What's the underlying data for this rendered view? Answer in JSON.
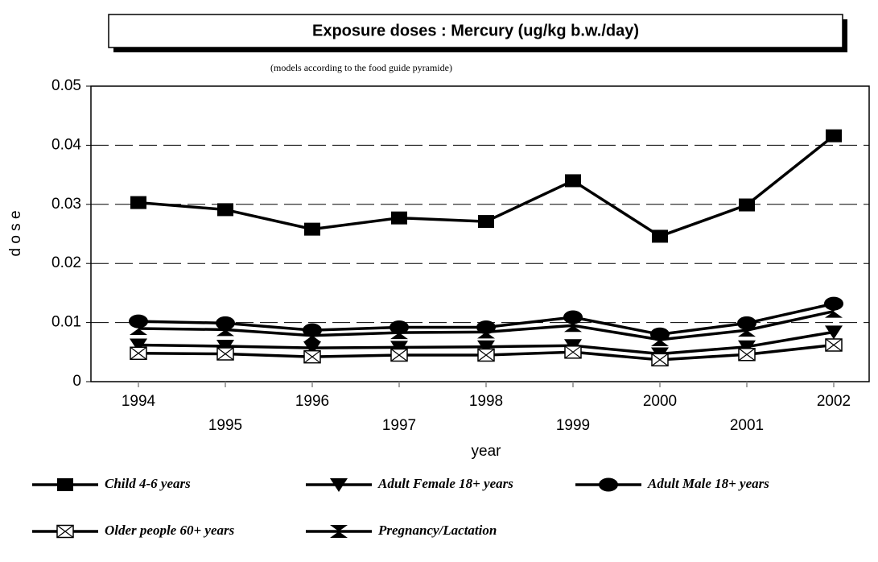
{
  "chart_data": {
    "type": "line",
    "title": "Exposure doses : Mercury (ug/kg b.w./day)",
    "subtitle": "(models according to the food guide pyramide)",
    "x_label": "year",
    "y_label": "d o s e",
    "categories": [
      "1994",
      "1995",
      "1996",
      "1997",
      "1998",
      "1999",
      "2000",
      "2001",
      "2002"
    ],
    "ylim": [
      0,
      0.05
    ],
    "yticks": [
      0,
      0.01,
      0.02,
      0.03,
      0.04,
      0.05
    ],
    "grid": true,
    "legend": "bottom",
    "series": [
      {
        "name": "Child 4-6 years",
        "color": "#000000",
        "marker": "square",
        "values": [
          0.0303,
          0.0291,
          0.0258,
          0.0277,
          0.0271,
          0.034,
          0.0246,
          0.0299,
          0.0416
        ]
      },
      {
        "name": "Adult Female 18+ years",
        "color": "#000000",
        "marker": "triangle-down",
        "values": [
          0.0062,
          0.006,
          0.0057,
          0.0058,
          0.0059,
          0.0061,
          0.0047,
          0.0059,
          0.0084
        ]
      },
      {
        "name": "Adult Male 18+ years",
        "color": "#000000",
        "marker": "circle",
        "values": [
          0.0102,
          0.0099,
          0.0087,
          0.0092,
          0.0092,
          0.0109,
          0.008,
          0.0099,
          0.0132
        ]
      },
      {
        "name": "Older people 60+ years",
        "color": "#000000",
        "marker": "square-x",
        "values": [
          0.0048,
          0.0047,
          0.0042,
          0.0045,
          0.0045,
          0.005,
          0.0037,
          0.0046,
          0.0062
        ]
      },
      {
        "name": "Pregnancy/Lactation",
        "color": "#000000",
        "marker": "bowtie",
        "values": [
          0.009,
          0.0088,
          0.0078,
          0.0083,
          0.0084,
          0.0095,
          0.0071,
          0.0087,
          0.0119
        ]
      }
    ]
  }
}
